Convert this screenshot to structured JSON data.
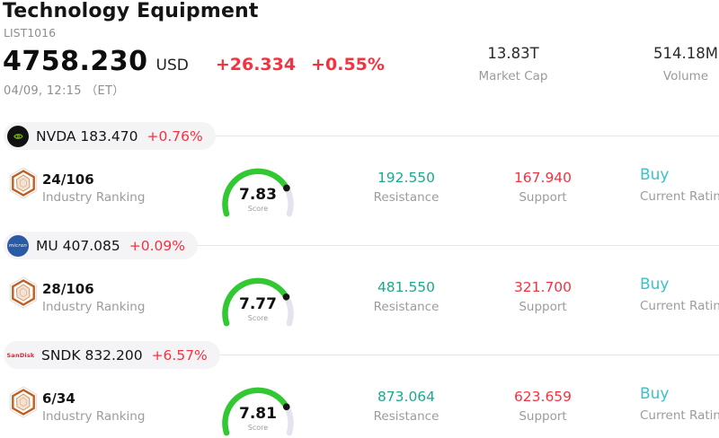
{
  "header": {
    "title": "Technology Equipment",
    "subtitle": "LIST1016",
    "price": "4758.230",
    "currency": "USD",
    "change": "+26.334",
    "change_pct": "+0.55%",
    "datetime": "04/09, 12:15 （ET）",
    "stats": [
      {
        "value": "13.83T",
        "label": "Market Cap"
      },
      {
        "value": "514.18M",
        "label": "Volume"
      }
    ]
  },
  "colors": {
    "up_down_red": "#f5323f",
    "resistance_green": "#1ca88c",
    "rating_cyan": "#3ac2c9",
    "gauge_green": "#32c832",
    "gauge_track": "#e4e4ee",
    "pill_bg": "#f4f4f6",
    "nvidia_green": "#76b900",
    "micron_blue": "#2b5aa5",
    "sandisk_red": "#e2242e"
  },
  "rows": [
    {
      "ticker_price": "NVDA 183.470",
      "change_pct": "+0.76%",
      "logo_text": "",
      "ranking": "24/106",
      "ranking_label": "Industry Ranking",
      "score": "7.83",
      "score_label": "Score",
      "resistance": "192.550",
      "resistance_label": "Resistance",
      "support": "167.940",
      "support_label": "Support",
      "rating": "Buy",
      "rating_label": "Current Rating"
    },
    {
      "ticker_price": "MU 407.085",
      "change_pct": "+0.09%",
      "logo_text": "micron",
      "ranking": "28/106",
      "ranking_label": "Industry Ranking",
      "score": "7.77",
      "score_label": "Score",
      "resistance": "481.550",
      "resistance_label": "Resistance",
      "support": "321.700",
      "support_label": "Support",
      "rating": "Buy",
      "rating_label": "Current Rating"
    },
    {
      "ticker_price": "SNDK 832.200",
      "change_pct": "+6.57%",
      "logo_text": "SanDisk",
      "ranking": "6/34",
      "ranking_label": "Industry Ranking",
      "score": "7.81",
      "score_label": "Score",
      "resistance": "873.064",
      "resistance_label": "Resistance",
      "support": "623.659",
      "support_label": "Support",
      "rating": "Buy",
      "rating_label": "Current Rating"
    }
  ]
}
